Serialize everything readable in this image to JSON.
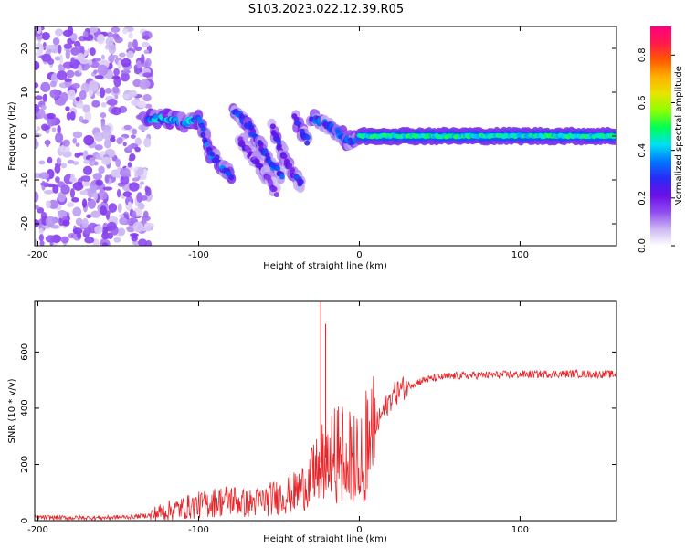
{
  "title": "S103.2023.022.12.39.R05",
  "chart_data": [
    {
      "type": "heatmap",
      "xlabel": "Height of straight line (km)",
      "ylabel": "Frequency (Hz)",
      "xlim": [
        -202,
        160
      ],
      "ylim": [
        -25,
        25
      ],
      "xticks": [
        -200,
        -100,
        0,
        100
      ],
      "xtick_labels": [
        "-200",
        "-100",
        "0",
        "100"
      ],
      "yticks": [
        20,
        10,
        0,
        -10,
        -20
      ],
      "ytick_labels": [
        "20",
        "10",
        "0",
        "-10",
        "-20"
      ],
      "colorbar": {
        "label": "Normalized spectral amplitude",
        "range": [
          0,
          0.92
        ],
        "ticks": [
          0.0,
          0.2,
          0.4,
          0.6,
          0.8
        ],
        "tick_labels": [
          "0.0",
          "0.2",
          "0.4",
          "0.6",
          "0.8"
        ],
        "colormap": [
          "#ffffff",
          "#cbb6f3",
          "#8f4cf0",
          "#6a0fe6",
          "#2a2af5",
          "#0078ff",
          "#00e0f0",
          "#00ff55",
          "#8cff00",
          "#e6e600",
          "#ffb000",
          "#ff5a00",
          "#ff1a4a",
          "#ff007f"
        ]
      },
      "features": [
        {
          "name": "noise",
          "x_range": [
            -202,
            -130
          ],
          "y_range": [
            -25,
            25
          ],
          "amplitude": 0.12
        },
        {
          "name": "segment",
          "points": [
            [
              -132,
              4
            ],
            [
              -120,
              4
            ],
            [
              -110,
              3
            ],
            [
              -100,
              4
            ],
            [
              -96,
              1
            ]
          ],
          "amplitude": 0.35
        },
        {
          "name": "segment",
          "points": [
            [
              -98,
              2
            ],
            [
              -94,
              -3
            ],
            [
              -86,
              -7
            ],
            [
              -80,
              -9
            ]
          ],
          "amplitude": 0.3
        },
        {
          "name": "segment",
          "points": [
            [
              -78,
              6
            ],
            [
              -70,
              3
            ],
            [
              -62,
              -2
            ],
            [
              -54,
              -7
            ],
            [
              -48,
              -9
            ]
          ],
          "amplitude": 0.28
        },
        {
          "name": "segment",
          "points": [
            [
              -74,
              -1
            ],
            [
              -66,
              -5
            ],
            [
              -58,
              -9
            ],
            [
              -52,
              -13
            ]
          ],
          "amplitude": 0.2
        },
        {
          "name": "segment",
          "points": [
            [
              -54,
              2
            ],
            [
              -48,
              -4
            ],
            [
              -42,
              -8
            ],
            [
              -36,
              -11
            ]
          ],
          "amplitude": 0.25
        },
        {
          "name": "segment",
          "points": [
            [
              -40,
              4
            ],
            [
              -36,
              1
            ],
            [
              -32,
              -1
            ]
          ],
          "amplitude": 0.25
        },
        {
          "name": "segment",
          "points": [
            [
              -30,
              4
            ],
            [
              -22,
              3
            ],
            [
              -14,
              1
            ],
            [
              -8,
              -1
            ],
            [
              -2,
              -1
            ]
          ],
          "amplitude": 0.3
        },
        {
          "name": "band",
          "x_range": [
            0,
            160
          ],
          "y": 0,
          "amplitude": 0.4
        }
      ]
    },
    {
      "type": "line",
      "xlabel": "Height of straight line (km)",
      "ylabel": "SNR (10 * v/v)",
      "xlim": [
        -202,
        160
      ],
      "ylim": [
        0,
        780
      ],
      "xticks": [
        -200,
        -100,
        0,
        100
      ],
      "xtick_labels": [
        "-200",
        "-100",
        "0",
        "100"
      ],
      "yticks": [
        0,
        200,
        400,
        600
      ],
      "ytick_labels": [
        "0",
        "200",
        "400",
        "600"
      ],
      "series": [
        {
          "color": "#e8262a",
          "x": [
            -202,
            -180,
            -160,
            -140,
            -130,
            -120,
            -110,
            -100,
            -90,
            -80,
            -70,
            -60,
            -50,
            -40,
            -35,
            -30,
            -25,
            -20,
            -15,
            -10,
            -5,
            0,
            5,
            10,
            15,
            20,
            25,
            30,
            35,
            40,
            50,
            60,
            80,
            100,
            120,
            140,
            160
          ],
          "y": [
            12,
            10,
            10,
            14,
            20,
            35,
            45,
            55,
            65,
            75,
            60,
            70,
            85,
            100,
            120,
            150,
            200,
            230,
            250,
            260,
            270,
            280,
            300,
            330,
            390,
            440,
            465,
            480,
            490,
            500,
            510,
            515,
            518,
            520,
            522,
            522,
            520
          ]
        }
      ],
      "spikes": [
        [
          -24,
          790
        ],
        [
          -21,
          700
        ]
      ]
    }
  ]
}
